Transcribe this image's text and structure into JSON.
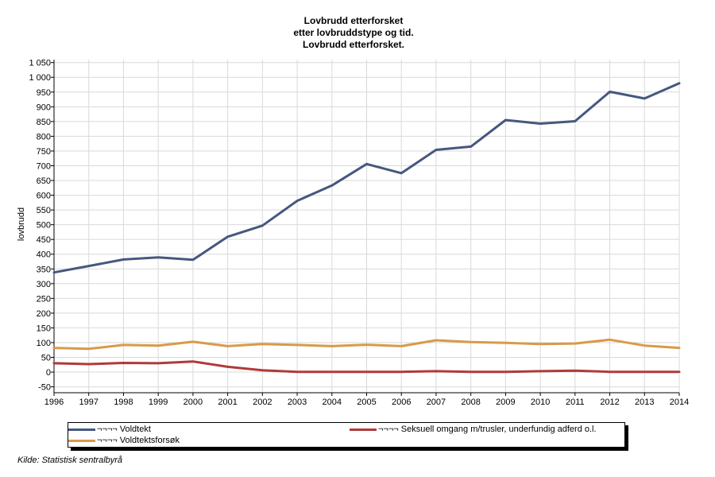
{
  "chart_data": {
    "type": "line",
    "title_lines": [
      "Lovbrudd etterforsket",
      "etter lovbruddstype og tid.",
      "Lovbrudd etterforsket."
    ],
    "xlabel": "",
    "ylabel": "lovbrudd",
    "x": [
      "1996",
      "1997",
      "1998",
      "1999",
      "2000",
      "2001",
      "2002",
      "2003",
      "2004",
      "2005",
      "2006",
      "2007",
      "2008",
      "2009",
      "2010",
      "2011",
      "2012",
      "2013",
      "2014"
    ],
    "y_ticks": [
      "1 050",
      "1 000",
      "950",
      "900",
      "850",
      "800",
      "750",
      "700",
      "650",
      "600",
      "550",
      "500",
      "450",
      "400",
      "350",
      "300",
      "250",
      "200",
      "150",
      "100",
      "50",
      "0",
      "-50"
    ],
    "ylim": [
      -70,
      1060
    ],
    "grid": true,
    "series": [
      {
        "name": "¬¬¬¬ Voldtekt",
        "color": "#46587e",
        "values": [
          338,
          360,
          382,
          389,
          381,
          459,
          497,
          581,
          633,
          706,
          675,
          754,
          765,
          855,
          843,
          851,
          951,
          928,
          980
        ]
      },
      {
        "name": "¬¬¬¬ Seksuell omgang m/trusler, underfundig adferd o.l.",
        "color": "#b03a3a",
        "values": [
          30,
          27,
          31,
          30,
          36,
          18,
          6,
          1,
          1,
          1,
          1,
          3,
          1,
          1,
          3,
          5,
          1,
          1,
          1
        ]
      },
      {
        "name": "¬¬¬¬ Voldtektsforsøk",
        "color": "#d99a48",
        "values": [
          82,
          79,
          92,
          90,
          103,
          88,
          95,
          92,
          88,
          93,
          88,
          108,
          102,
          99,
          95,
          97,
          110,
          90,
          82
        ]
      }
    ],
    "legend_position": "bottom"
  },
  "source": "Kilde: Statistisk sentralbyrå"
}
